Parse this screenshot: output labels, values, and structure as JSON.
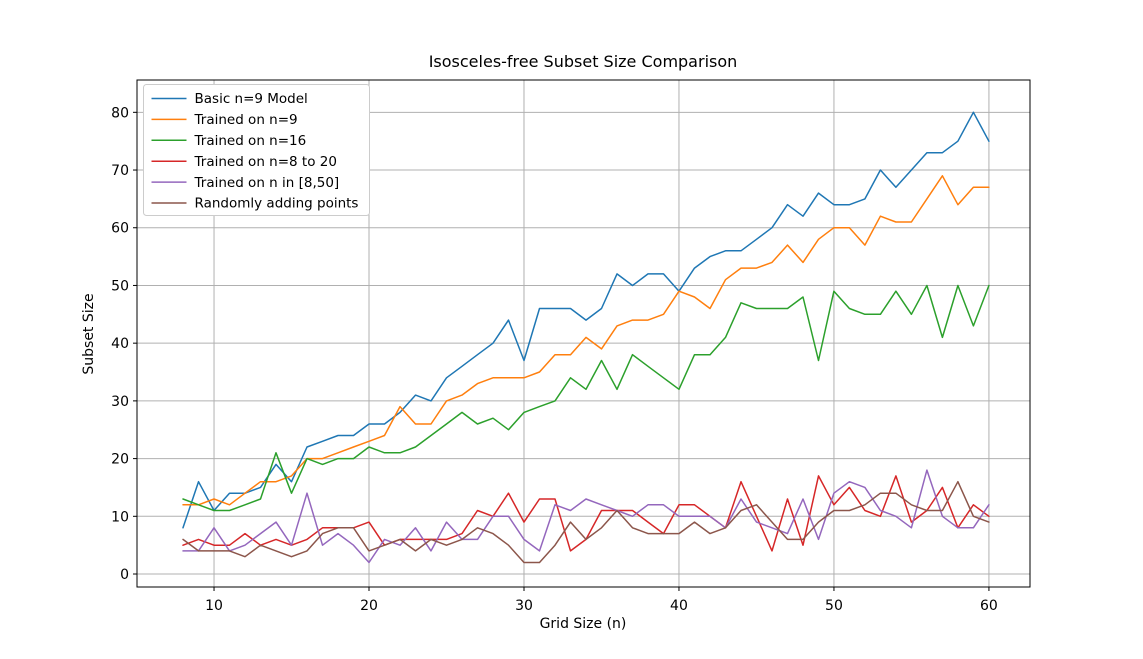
{
  "chart_data": {
    "type": "line",
    "title": "Isosceles-free Subset Size Comparison",
    "xlabel": "Grid Size (n)",
    "ylabel": "Subset Size",
    "x": [
      8,
      9,
      10,
      11,
      12,
      13,
      14,
      15,
      16,
      17,
      18,
      19,
      20,
      21,
      22,
      23,
      24,
      25,
      26,
      27,
      28,
      29,
      30,
      31,
      32,
      33,
      34,
      35,
      36,
      37,
      38,
      39,
      40,
      41,
      42,
      43,
      44,
      45,
      46,
      47,
      48,
      49,
      50,
      51,
      52,
      53,
      54,
      55,
      56,
      57,
      58,
      59,
      60
    ],
    "series": [
      {
        "name": "Basic n=9 Model",
        "color": "#1f77b4",
        "values": [
          8,
          16,
          11,
          14,
          14,
          15,
          19,
          16,
          22,
          23,
          24,
          24,
          26,
          26,
          28,
          31,
          30,
          34,
          36,
          38,
          40,
          44,
          37,
          46,
          46,
          46,
          44,
          46,
          52,
          50,
          52,
          52,
          49,
          53,
          55,
          56,
          56,
          58,
          60,
          64,
          62,
          66,
          64,
          64,
          65,
          70,
          67,
          70,
          73,
          73,
          75,
          80,
          75
        ]
      },
      {
        "name": "Trained on n=9",
        "color": "#ff7f0e",
        "values": [
          12,
          12,
          13,
          12,
          14,
          16,
          16,
          17,
          20,
          20,
          21,
          22,
          23,
          24,
          29,
          26,
          26,
          30,
          31,
          33,
          34,
          34,
          34,
          35,
          38,
          38,
          41,
          39,
          43,
          44,
          44,
          45,
          49,
          48,
          46,
          51,
          53,
          53,
          54,
          57,
          54,
          58,
          60,
          60,
          57,
          62,
          61,
          61,
          65,
          69,
          64,
          67,
          67
        ]
      },
      {
        "name": "Trained on n=16",
        "color": "#2ca02c",
        "values": [
          13,
          12,
          11,
          11,
          12,
          13,
          21,
          14,
          20,
          19,
          20,
          20,
          22,
          21,
          21,
          22,
          24,
          26,
          28,
          26,
          27,
          25,
          28,
          29,
          30,
          34,
          32,
          37,
          32,
          38,
          36,
          34,
          32,
          38,
          38,
          41,
          47,
          46,
          46,
          46,
          48,
          37,
          49,
          46,
          45,
          45,
          49,
          45,
          50,
          41,
          50,
          43,
          50
        ]
      },
      {
        "name": "Trained on n=8 to 20",
        "color": "#d62728",
        "values": [
          5,
          6,
          5,
          5,
          7,
          5,
          6,
          5,
          6,
          8,
          8,
          8,
          9,
          5,
          6,
          6,
          6,
          6,
          7,
          11,
          10,
          14,
          9,
          13,
          13,
          4,
          6,
          11,
          11,
          11,
          9,
          7,
          12,
          12,
          10,
          8,
          16,
          10,
          4,
          13,
          5,
          17,
          12,
          15,
          11,
          10,
          17,
          9,
          11,
          15,
          8,
          12,
          10
        ]
      },
      {
        "name": "Trained on n in [8,50]",
        "color": "#9467bd",
        "values": [
          4,
          4,
          8,
          4,
          5,
          7,
          9,
          5,
          14,
          5,
          7,
          5,
          2,
          6,
          5,
          8,
          4,
          9,
          6,
          6,
          10,
          10,
          6,
          4,
          12,
          11,
          13,
          12,
          11,
          10,
          12,
          12,
          10,
          10,
          10,
          8,
          13,
          9,
          8,
          7,
          13,
          6,
          14,
          16,
          15,
          11,
          10,
          8,
          18,
          10,
          8,
          8,
          12
        ]
      },
      {
        "name": "Randomly adding points",
        "color": "#8c564b",
        "values": [
          6,
          4,
          4,
          4,
          3,
          5,
          4,
          3,
          4,
          7,
          8,
          8,
          4,
          5,
          6,
          4,
          6,
          5,
          6,
          8,
          7,
          5,
          2,
          2,
          5,
          9,
          6,
          8,
          11,
          8,
          7,
          7,
          7,
          9,
          7,
          8,
          11,
          12,
          9,
          6,
          6,
          9,
          11,
          11,
          12,
          14,
          14,
          12,
          11,
          11,
          16,
          10,
          9
        ]
      }
    ],
    "xticks": [
      10,
      20,
      30,
      40,
      50,
      60
    ],
    "yticks": [
      0,
      10,
      20,
      30,
      40,
      50,
      60,
      70,
      80
    ],
    "xlim": [
      5.03,
      62.65
    ],
    "ylim": [
      -2.25,
      85.6
    ],
    "grid": true,
    "grid_color": "#b0b0b0",
    "frame_color": "#000000",
    "background": "#ffffff",
    "legend_position": "upper left",
    "line_width": 1.5
  }
}
